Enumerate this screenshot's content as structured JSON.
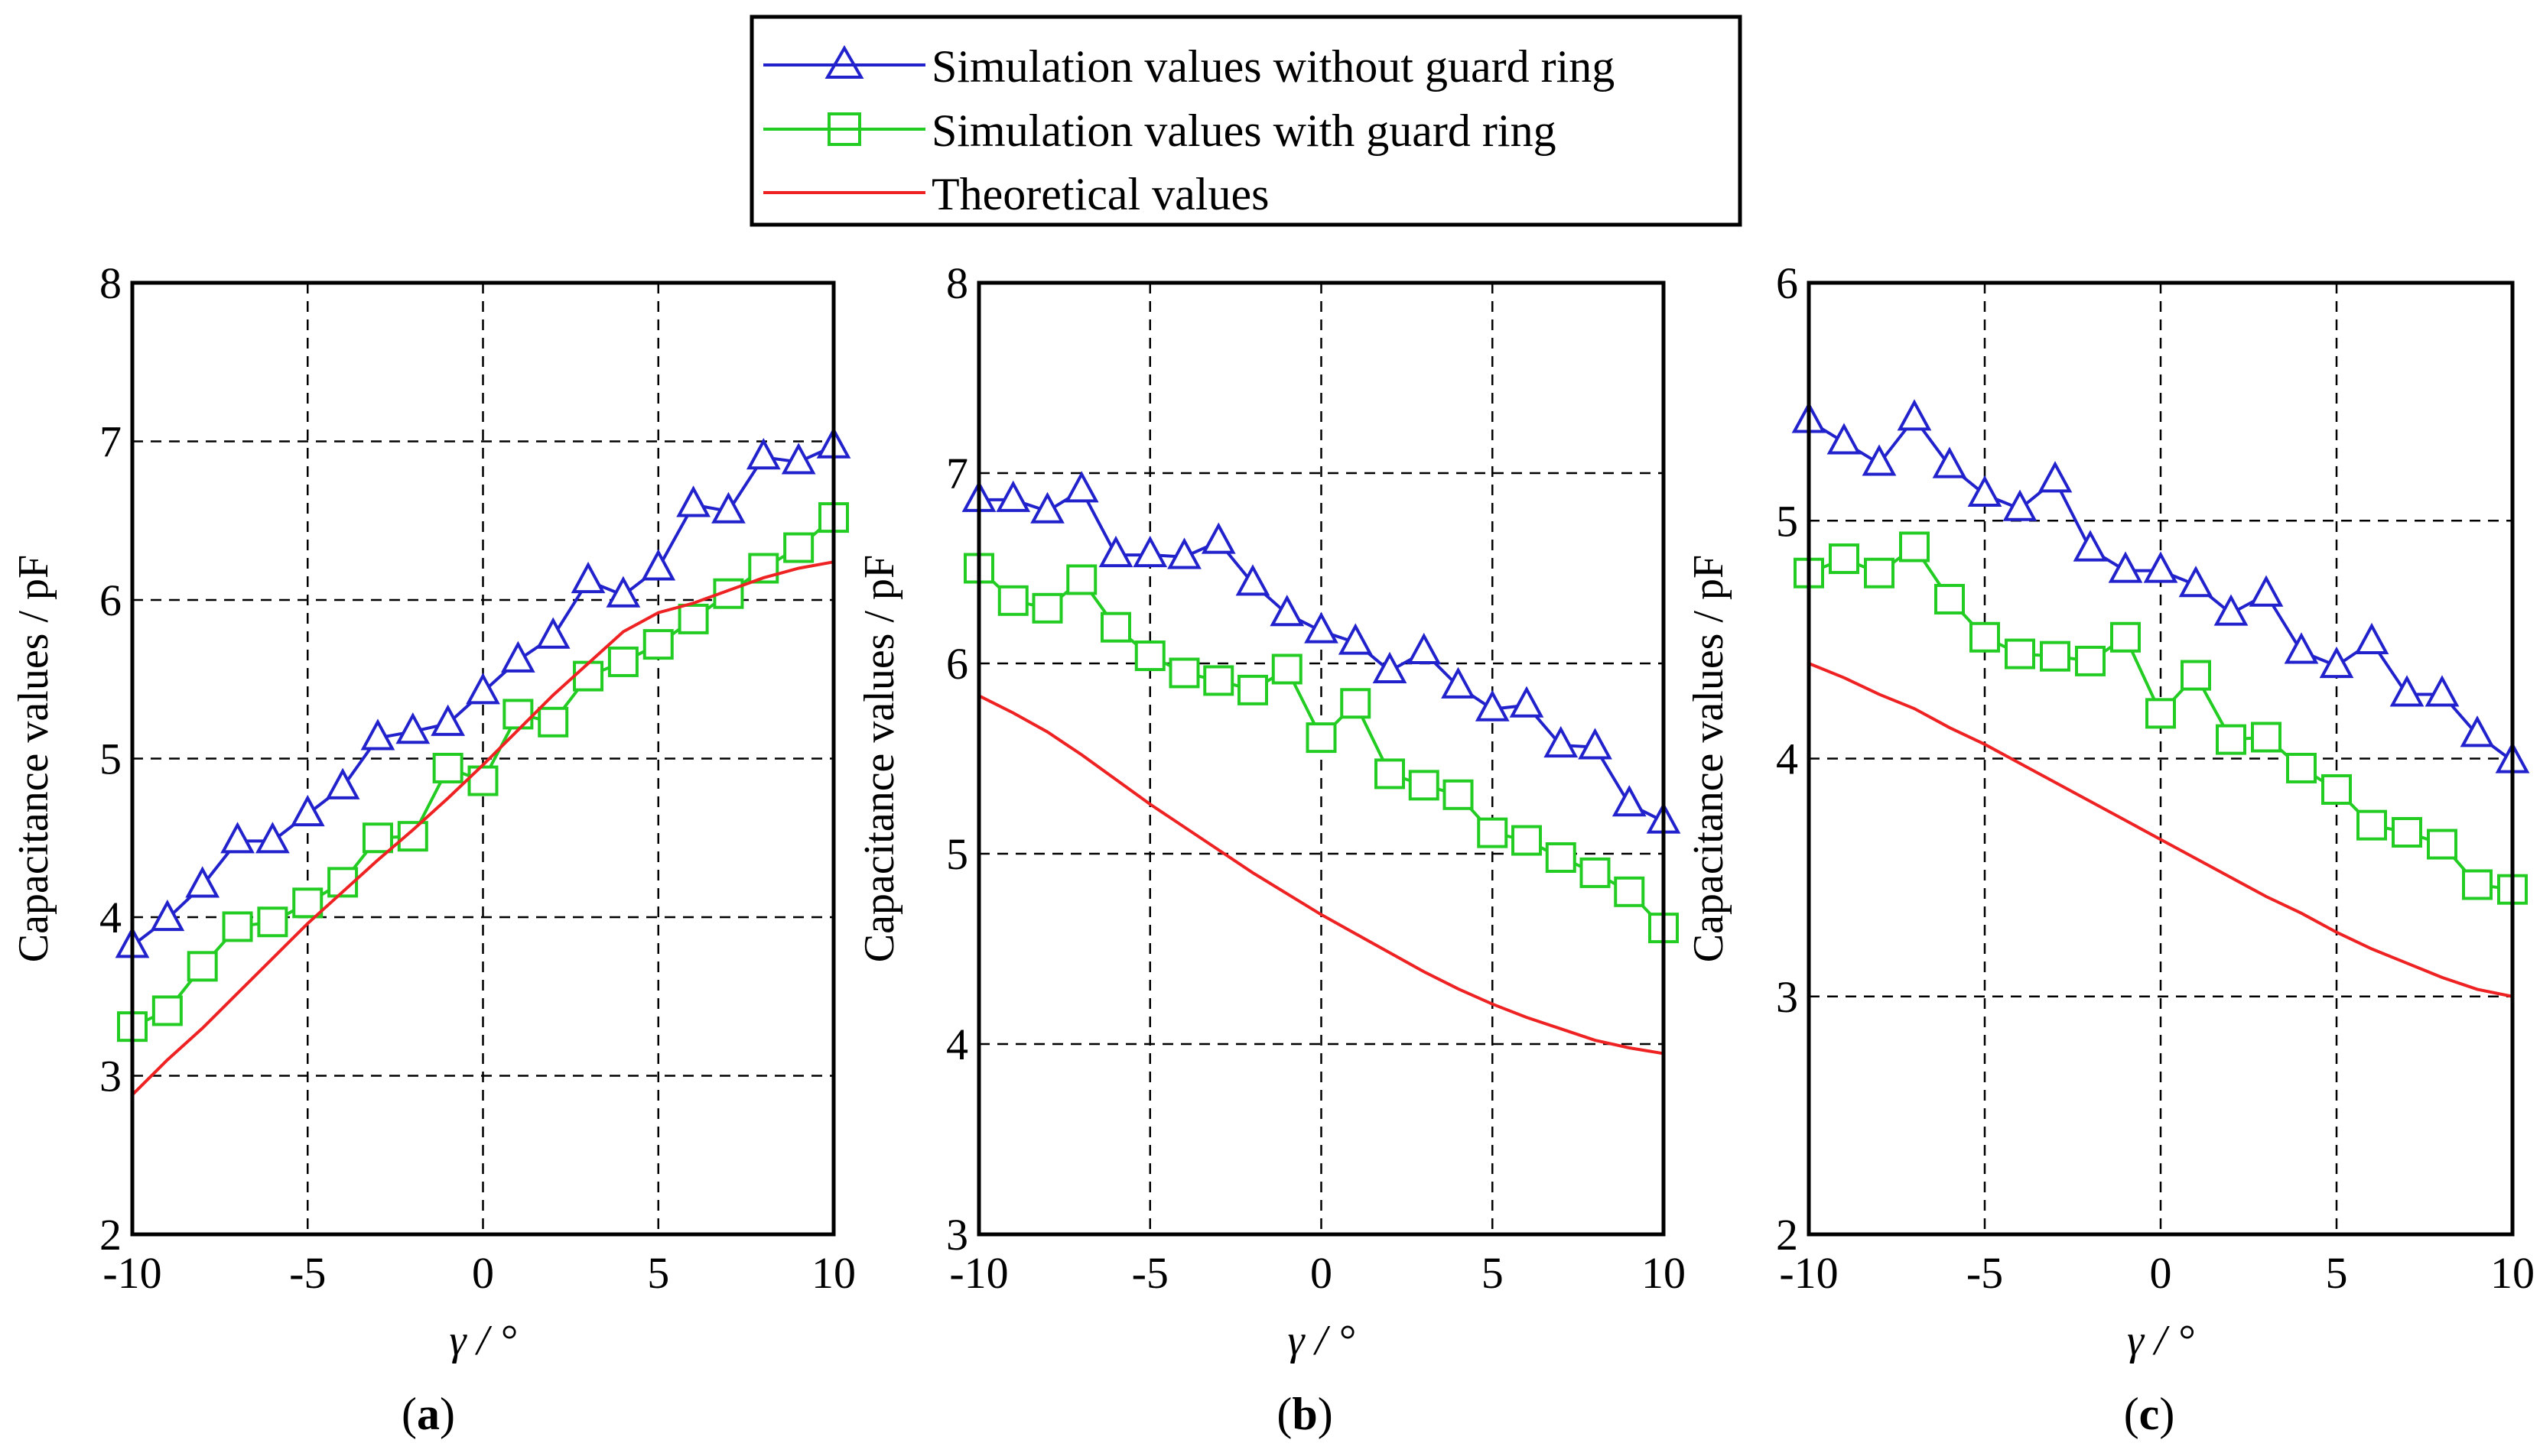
{
  "legend": {
    "items": [
      {
        "label": "Simulation values without guard ring",
        "color": "#2222cc",
        "marker": "triangle"
      },
      {
        "label": "Simulation values with guard ring",
        "color": "#22cc22",
        "marker": "square"
      },
      {
        "label": "Theoretical values",
        "color": "#ee2222",
        "marker": "none"
      }
    ]
  },
  "chart_data": [
    {
      "type": "line",
      "caption": "a",
      "xlabel": "γ / °",
      "ylabel": "Capacitance values / pF",
      "xlim": [
        -10,
        10
      ],
      "ylim": [
        2,
        8
      ],
      "xticks": [
        "-10",
        "-5",
        "0",
        "5",
        "10"
      ],
      "yticks": [
        "2",
        "3",
        "4",
        "5",
        "6",
        "7",
        "8"
      ],
      "xtick_values": [
        -10,
        -5,
        0,
        5,
        10
      ],
      "ytick_values": [
        2,
        3,
        4,
        5,
        6,
        7,
        8
      ],
      "grid": true,
      "x": [
        -10,
        -9,
        -8,
        -7,
        -6,
        -5,
        -4,
        -3,
        -2,
        -1,
        0,
        1,
        2,
        3,
        4,
        5,
        6,
        7,
        8,
        9,
        10
      ],
      "series": [
        {
          "values": [
            3.82,
            3.99,
            4.2,
            4.48,
            4.48,
            4.65,
            4.82,
            5.13,
            5.17,
            5.22,
            5.42,
            5.62,
            5.77,
            6.12,
            6.03,
            6.2,
            6.6,
            6.56,
            6.9,
            6.87,
            6.97
          ]
        },
        {
          "values": [
            3.31,
            3.41,
            3.69,
            3.94,
            3.97,
            4.09,
            4.22,
            4.5,
            4.51,
            4.94,
            4.86,
            5.28,
            5.23,
            5.52,
            5.61,
            5.72,
            5.88,
            6.04,
            6.2,
            6.33,
            6.52
          ]
        },
        {
          "values": [
            2.88,
            3.1,
            3.3,
            3.52,
            3.74,
            3.96,
            4.16,
            4.36,
            4.55,
            4.75,
            4.96,
            5.18,
            5.4,
            5.6,
            5.8,
            5.92,
            5.98,
            6.06,
            6.14,
            6.2,
            6.24
          ]
        }
      ]
    },
    {
      "type": "line",
      "caption": "b",
      "xlabel": "γ / °",
      "ylabel": "Capacitance values / pF",
      "xlim": [
        -10,
        10
      ],
      "ylim": [
        3,
        8
      ],
      "xticks": [
        "-10",
        "-5",
        "0",
        "5",
        "10"
      ],
      "yticks": [
        "3",
        "4",
        "5",
        "6",
        "7",
        "8"
      ],
      "xtick_values": [
        -10,
        -5,
        0,
        5,
        10
      ],
      "ytick_values": [
        3,
        4,
        5,
        6,
        7,
        8
      ],
      "grid": true,
      "x": [
        -10,
        -9,
        -8,
        -7,
        -6,
        -5,
        -4,
        -3,
        -2,
        -1,
        0,
        1,
        2,
        3,
        4,
        5,
        6,
        7,
        8,
        9,
        10
      ],
      "series": [
        {
          "values": [
            6.86,
            6.86,
            6.8,
            6.91,
            6.57,
            6.57,
            6.56,
            6.64,
            6.42,
            6.26,
            6.17,
            6.11,
            5.96,
            6.06,
            5.88,
            5.76,
            5.78,
            5.57,
            5.56,
            5.26,
            5.17
          ]
        },
        {
          "values": [
            6.5,
            6.33,
            6.29,
            6.44,
            6.19,
            6.04,
            5.95,
            5.91,
            5.86,
            5.97,
            5.61,
            5.79,
            5.42,
            5.36,
            5.31,
            5.11,
            5.07,
            4.98,
            4.9,
            4.8,
            4.61
          ]
        },
        {
          "values": [
            5.83,
            5.74,
            5.64,
            5.52,
            5.39,
            5.26,
            5.14,
            5.02,
            4.9,
            4.79,
            4.68,
            4.58,
            4.48,
            4.38,
            4.29,
            4.21,
            4.14,
            4.08,
            4.02,
            3.98,
            3.95
          ]
        }
      ]
    },
    {
      "type": "line",
      "caption": "c",
      "xlabel": "γ / °",
      "ylabel": "Capacitance values / pF",
      "xlim": [
        -10,
        10
      ],
      "ylim": [
        2,
        6
      ],
      "xticks": [
        "-10",
        "-5",
        "0",
        "5",
        "10"
      ],
      "yticks": [
        "2",
        "3",
        "4",
        "5",
        "6"
      ],
      "xtick_values": [
        -10,
        -5,
        0,
        5,
        10
      ],
      "ytick_values": [
        2,
        3,
        4,
        5,
        6
      ],
      "grid": true,
      "x": [
        -10,
        -9,
        -8,
        -7,
        -6,
        -5,
        -4,
        -3,
        -2,
        -1,
        0,
        1,
        2,
        3,
        4,
        5,
        6,
        7,
        8,
        9,
        10
      ],
      "series": [
        {
          "values": [
            5.42,
            5.33,
            5.24,
            5.43,
            5.23,
            5.11,
            5.05,
            5.17,
            4.88,
            4.79,
            4.79,
            4.73,
            4.61,
            4.69,
            4.45,
            4.39,
            4.49,
            4.27,
            4.27,
            4.1,
            3.99
          ]
        },
        {
          "values": [
            4.78,
            4.84,
            4.78,
            4.89,
            4.67,
            4.51,
            4.44,
            4.43,
            4.41,
            4.51,
            4.19,
            4.35,
            4.08,
            4.09,
            3.96,
            3.87,
            3.72,
            3.69,
            3.64,
            3.47,
            3.45
          ]
        },
        {
          "values": [
            4.4,
            4.34,
            4.27,
            4.21,
            4.13,
            4.06,
            3.98,
            3.9,
            3.82,
            3.74,
            3.66,
            3.58,
            3.5,
            3.42,
            3.35,
            3.27,
            3.2,
            3.14,
            3.08,
            3.03,
            3.0
          ]
        }
      ]
    }
  ]
}
